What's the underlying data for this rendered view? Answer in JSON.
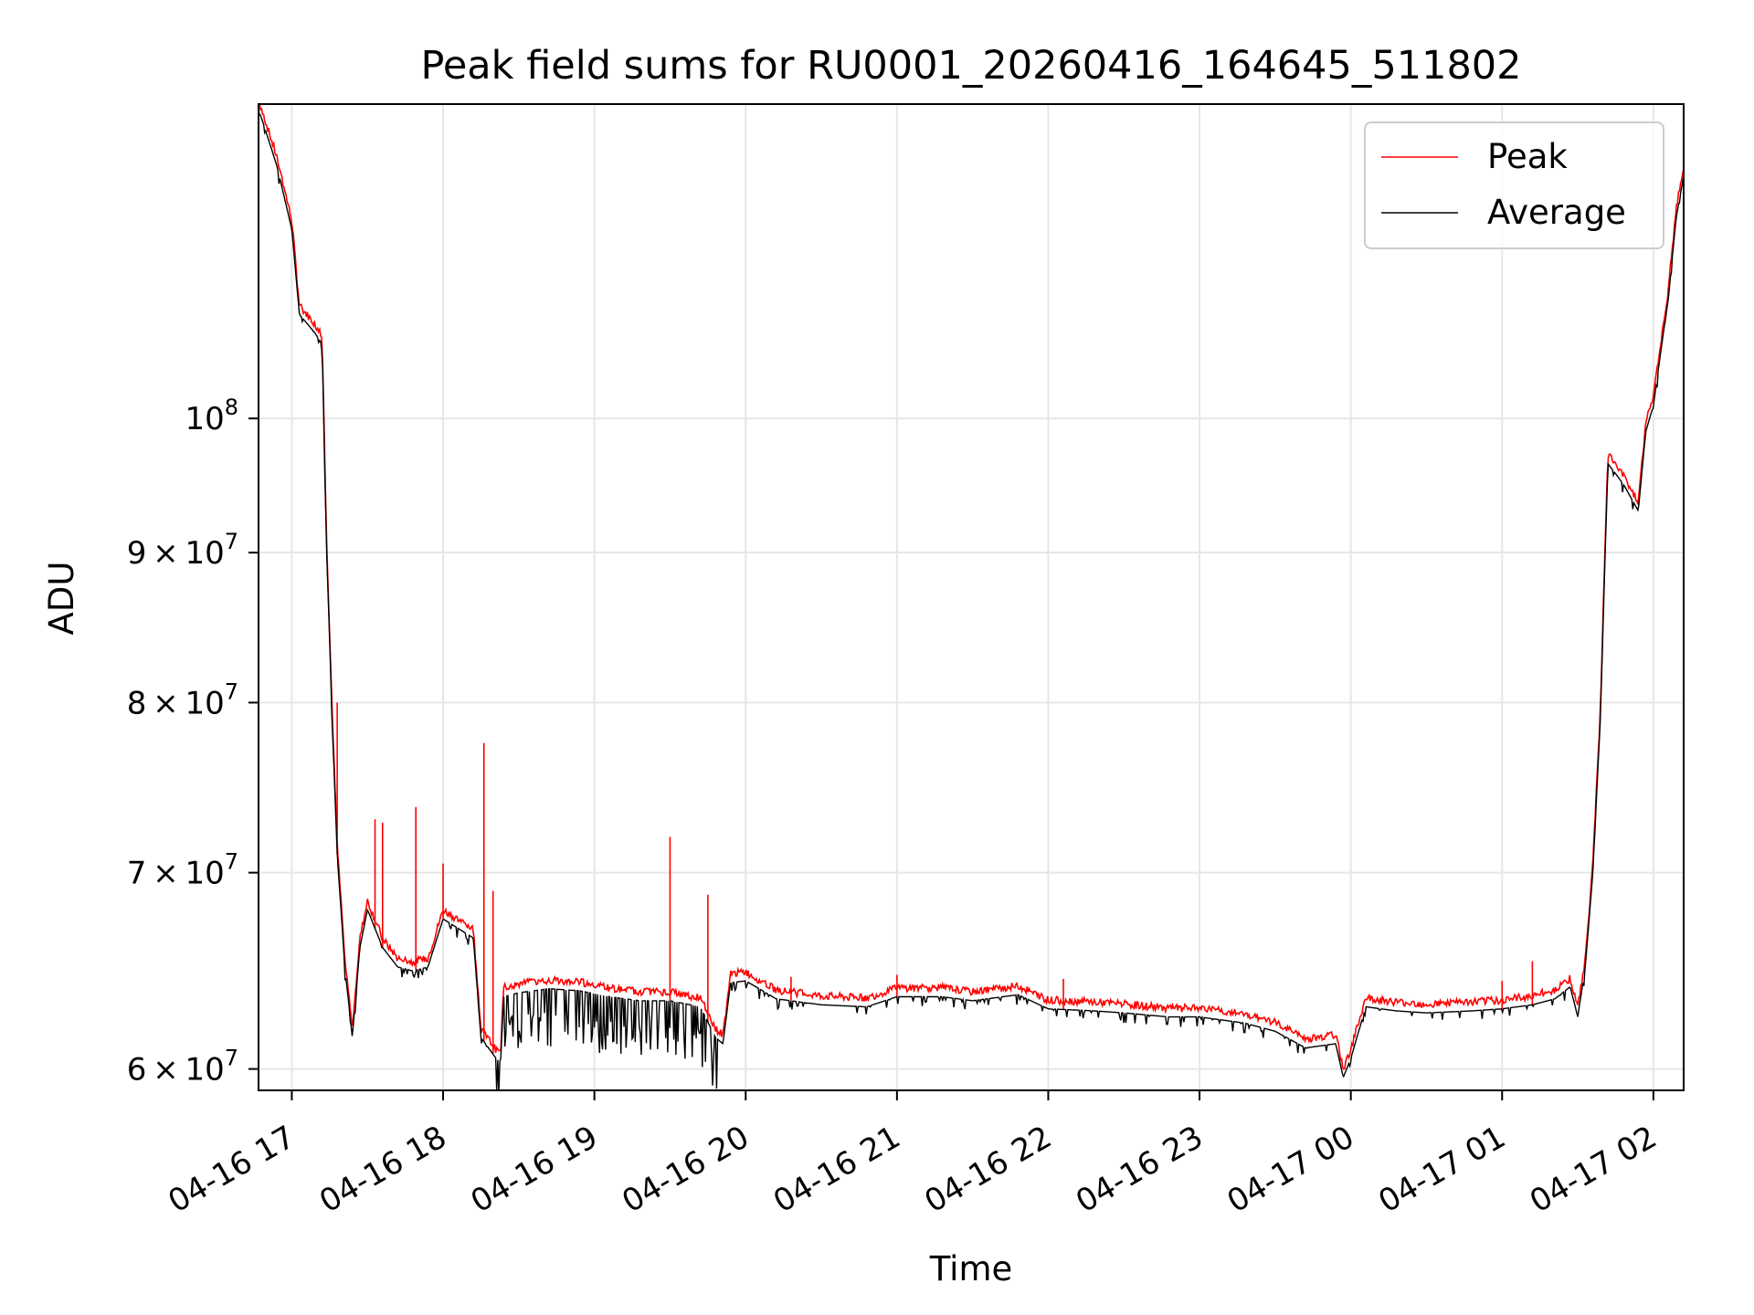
{
  "chart_data": {
    "type": "line",
    "title": "Peak field sums for RU0001_20260416_164645_511802",
    "xlabel": "Time",
    "ylabel": "ADU",
    "yscale": "log",
    "ylim": [
      59000000,
      128000000
    ],
    "xlim_hours": [
      16.78,
      26.2
    ],
    "x_ticks": [
      {
        "label": "04-16 17",
        "hour": 17
      },
      {
        "label": "04-16 18",
        "hour": 18
      },
      {
        "label": "04-16 19",
        "hour": 19
      },
      {
        "label": "04-16 20",
        "hour": 20
      },
      {
        "label": "04-16 21",
        "hour": 21
      },
      {
        "label": "04-16 22",
        "hour": 22
      },
      {
        "label": "04-16 23",
        "hour": 23
      },
      {
        "label": "04-17 00",
        "hour": 24
      },
      {
        "label": "04-17 01",
        "hour": 25
      },
      {
        "label": "04-17 02",
        "hour": 26
      }
    ],
    "y_ticks": [
      {
        "value": 60000000,
        "mant": "6",
        "times": "×",
        "base": "10",
        "exp": "7"
      },
      {
        "value": 70000000,
        "mant": "7",
        "times": "×",
        "base": "10",
        "exp": "7"
      },
      {
        "value": 80000000,
        "mant": "8",
        "times": "×",
        "base": "10",
        "exp": "7"
      },
      {
        "value": 90000000,
        "mant": "9",
        "times": "×",
        "base": "10",
        "exp": "7"
      },
      {
        "value": 100000000,
        "mant": "",
        "times": "",
        "base": "10",
        "exp": "8"
      }
    ],
    "grid": true,
    "legend_position": "top-right",
    "series": [
      {
        "name": "Peak",
        "color": "#ff0000"
      },
      {
        "name": "Average",
        "color": "#000000"
      }
    ],
    "average_curve_hours": [
      16.78,
      16.9,
      17.0,
      17.03,
      17.05,
      17.15,
      17.2,
      17.23,
      17.27,
      17.3,
      17.35,
      17.4,
      17.45,
      17.5,
      17.6,
      17.7,
      17.8,
      17.9,
      18.0,
      18.1,
      18.2,
      18.25,
      18.3,
      18.35,
      18.38,
      18.4,
      18.5,
      18.7,
      18.9,
      19.1,
      19.3,
      19.5,
      19.7,
      19.8,
      19.85,
      19.9,
      20.0,
      20.2,
      20.5,
      20.8,
      21.0,
      21.3,
      21.5,
      21.8,
      22.0,
      22.3,
      22.5,
      22.8,
      23.0,
      23.3,
      23.5,
      23.7,
      23.9,
      23.95,
      24.0,
      24.1,
      24.3,
      24.5,
      24.8,
      25.0,
      25.2,
      25.35,
      25.45,
      25.5,
      25.55,
      25.6,
      25.65,
      25.7,
      25.8,
      25.9,
      25.95,
      26.0,
      26.1,
      26.15,
      26.2
    ],
    "average_curve_values": [
      127500000,
      122000000,
      116000000,
      111500000,
      108500000,
      107000000,
      106000000,
      90000000,
      78000000,
      71000000,
      65000000,
      61500000,
      66000000,
      68000000,
      66000000,
      65000000,
      64800000,
      65000000,
      67500000,
      67000000,
      66500000,
      61500000,
      61000000,
      60500000,
      60300000,
      63500000,
      63700000,
      63900000,
      63800000,
      63500000,
      63300000,
      63300000,
      63000000,
      61500000,
      61200000,
      64200000,
      64300000,
      63400000,
      63100000,
      63000000,
      63500000,
      63500000,
      63300000,
      63600000,
      62900000,
      62800000,
      62700000,
      62500000,
      62500000,
      62200000,
      61800000,
      61000000,
      61200000,
      59600000,
      60500000,
      63000000,
      62800000,
      62700000,
      62800000,
      62900000,
      63100000,
      63400000,
      64000000,
      62500000,
      65000000,
      70000000,
      79000000,
      96500000,
      95000000,
      93000000,
      99000000,
      101000000,
      110000000,
      117000000,
      121000000
    ],
    "peak_spikes": [
      {
        "hour": 17.3,
        "value": 80000000
      },
      {
        "hour": 17.55,
        "value": 73000000
      },
      {
        "hour": 17.6,
        "value": 72800000
      },
      {
        "hour": 17.82,
        "value": 73700000
      },
      {
        "hour": 18.0,
        "value": 70500000
      },
      {
        "hour": 18.27,
        "value": 77500000
      },
      {
        "hour": 18.33,
        "value": 69000000
      },
      {
        "hour": 19.5,
        "value": 72000000
      },
      {
        "hour": 19.75,
        "value": 68800000
      },
      {
        "hour": 20.3,
        "value": 64500000
      },
      {
        "hour": 21.0,
        "value": 64600000
      },
      {
        "hour": 22.1,
        "value": 64400000
      },
      {
        "hour": 25.0,
        "value": 64300000
      },
      {
        "hour": 25.2,
        "value": 65300000
      }
    ]
  }
}
